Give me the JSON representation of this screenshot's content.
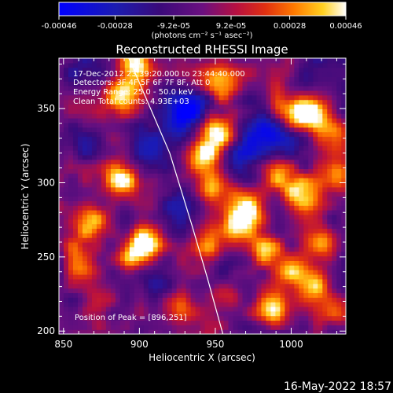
{
  "chart_data": {
    "type": "heatmap",
    "title": "Reconstructed RHESSI Image",
    "xlabel": "Heliocentric X (arcsec)",
    "ylabel": "Heliocentric Y (arcsec)",
    "xlim": [
      847,
      1036
    ],
    "ylim": [
      198,
      384
    ],
    "xticks": [
      850,
      900,
      950,
      1000
    ],
    "yticks": [
      200,
      250,
      300,
      350
    ],
    "colorbar": {
      "range": [
        -0.00046,
        0.00046
      ],
      "tick_values": [
        -0.00046,
        -0.00028,
        -9.2e-05,
        9.2e-05,
        0.00028,
        0.00046
      ],
      "tick_labels": [
        "-0.00046",
        "-0.00028",
        "-9.2e-05",
        "9.2e-05",
        "0.00028",
        "0.00046"
      ],
      "units": "(photons cm⁻² s⁻¹ asec⁻²)"
    },
    "annotations": {
      "time": "17-Dec-2012 23:39:20.000 to 23:44:40.000",
      "detectors": "Detectors: 3F 4F 5F 6F 7F 8F, Att 0",
      "energy": "Energy Range: 25.0 - 50.0 keV",
      "clean": "Clean    Total counts: 4.93E+03",
      "peak": "Position of Peak = [896,251]"
    },
    "limb_curve": [
      [
        893,
        384
      ],
      [
        920,
        320
      ],
      [
        935,
        270
      ],
      [
        945,
        235
      ],
      [
        955,
        198
      ]
    ],
    "hotspots": [
      {
        "x": 895,
        "y": 380,
        "v": 0.00046
      },
      {
        "x": 888,
        "y": 358,
        "v": 0.00035
      },
      {
        "x": 952,
        "y": 362,
        "v": 0.00038
      },
      {
        "x": 952,
        "y": 335,
        "v": 0.00045
      },
      {
        "x": 940,
        "y": 318,
        "v": 0.0004
      },
      {
        "x": 948,
        "y": 295,
        "v": 0.00036
      },
      {
        "x": 945,
        "y": 250,
        "v": 0.00032
      },
      {
        "x": 955,
        "y": 225,
        "v": 0.0003
      },
      {
        "x": 868,
        "y": 275,
        "v": 0.00036
      },
      {
        "x": 888,
        "y": 298,
        "v": 0.00044
      },
      {
        "x": 896,
        "y": 251,
        "v": 0.00046
      },
      {
        "x": 905,
        "y": 262,
        "v": 0.00042
      },
      {
        "x": 860,
        "y": 245,
        "v": 0.00028
      },
      {
        "x": 1000,
        "y": 345,
        "v": 0.00035
      },
      {
        "x": 1012,
        "y": 345,
        "v": 0.0004
      },
      {
        "x": 1025,
        "y": 330,
        "v": 0.0003
      },
      {
        "x": 1030,
        "y": 302,
        "v": 0.00035
      },
      {
        "x": 990,
        "y": 302,
        "v": 0.00033
      },
      {
        "x": 1005,
        "y": 292,
        "v": 0.0004
      },
      {
        "x": 970,
        "y": 280,
        "v": 0.00038
      },
      {
        "x": 982,
        "y": 255,
        "v": 0.00036
      },
      {
        "x": 1020,
        "y": 258,
        "v": 0.00042
      },
      {
        "x": 1015,
        "y": 230,
        "v": 0.0003
      },
      {
        "x": 1000,
        "y": 240,
        "v": 0.00034
      },
      {
        "x": 985,
        "y": 212,
        "v": 0.00038
      },
      {
        "x": 1030,
        "y": 210,
        "v": 0.00032
      },
      {
        "x": 925,
        "y": 215,
        "v": 0.00026
      },
      {
        "x": 870,
        "y": 220,
        "v": 0.00024
      },
      {
        "x": 960,
        "y": 270,
        "v": 0.0003
      }
    ],
    "coldspots": [
      {
        "x": 930,
        "y": 345,
        "v": -0.0003
      },
      {
        "x": 905,
        "y": 325,
        "v": -0.00025
      },
      {
        "x": 985,
        "y": 335,
        "v": -0.00022
      },
      {
        "x": 965,
        "y": 315,
        "v": -0.0002
      },
      {
        "x": 925,
        "y": 285,
        "v": -0.00024
      },
      {
        "x": 865,
        "y": 320,
        "v": -0.00018
      },
      {
        "x": 910,
        "y": 235,
        "v": -0.0002
      },
      {
        "x": 960,
        "y": 240,
        "v": -0.00022
      },
      {
        "x": 1010,
        "y": 370,
        "v": -0.00022
      }
    ]
  },
  "footer": {
    "timestamp": "16-May-2022 18:57"
  }
}
